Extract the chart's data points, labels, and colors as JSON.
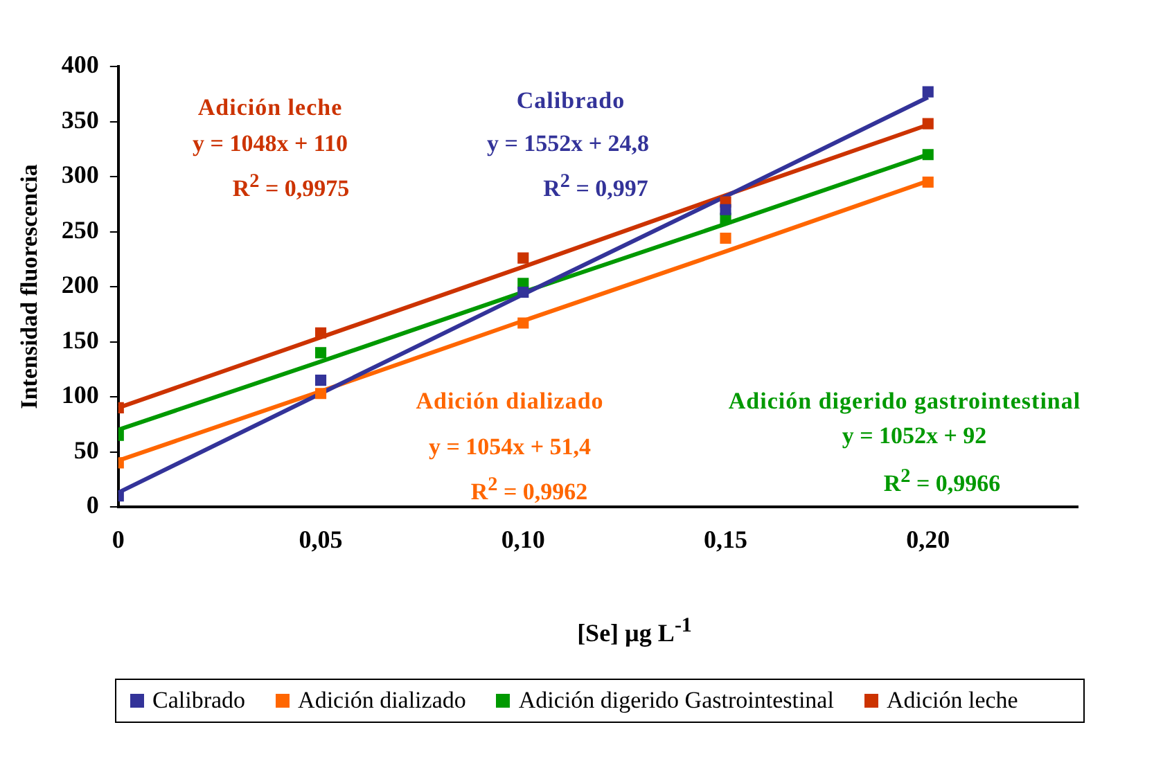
{
  "chart_data": {
    "type": "scatter",
    "xlabel": "[Se] µg L$^{-1}$",
    "ylabel": "Intensidad fluorescencia",
    "x": [
      0,
      0.05,
      0.1,
      0.15,
      0.2
    ],
    "series": [
      {
        "name": "Calibrado",
        "color": "#333399",
        "values": [
          10,
          115,
          195,
          270,
          377
        ]
      },
      {
        "name": "Adición dializado",
        "color": "#ff6600",
        "values": [
          40,
          103,
          167,
          244,
          295
        ]
      },
      {
        "name": "Adición digerido Gastrointestinal",
        "color": "#009900",
        "values": [
          65,
          140,
          203,
          262,
          320
        ]
      },
      {
        "name": "Adición leche",
        "color": "#cc3300",
        "values": [
          90,
          158,
          226,
          277,
          348
        ]
      },
      {
        "type": "line",
        "color": "#333399",
        "marker": "none",
        "values": [
          13,
          103,
          193,
          282,
          372
        ]
      },
      {
        "type": "line",
        "color": "#ff6600",
        "marker": "none",
        "values": [
          42,
          105,
          169,
          232,
          296
        ]
      },
      {
        "type": "line",
        "color": "#009900",
        "marker": "none",
        "values": [
          70,
          132,
          195,
          257,
          320
        ]
      },
      {
        "type": "line",
        "color": "#cc3300",
        "marker": "none",
        "values": [
          90,
          154,
          218,
          283,
          347
        ]
      }
    ],
    "xlim": [
      0,
      0.237
    ],
    "xticks": [
      0,
      {
        "value": 0.05,
        "label": "0,05"
      },
      {
        "value": 0.1,
        "label": "0,10"
      },
      {
        "value": 0.15,
        "label": "0,15"
      },
      {
        "value": 0.2,
        "label": "0,20"
      }
    ],
    "ylim": [
      0,
      400
    ],
    "yticks": [
      0,
      50,
      100,
      150,
      200,
      250,
      300,
      350,
      400
    ],
    "marker": "square",
    "grid": false,
    "legend": "bottom",
    "annotations": [
      "Adición leche",
      "y = 1048x + 110",
      "R$^{2}$ = 0,9975",
      "Calibrado",
      "y = 1552x + 24,8",
      "R$^{2}$ = 0,997",
      "Adición dializado",
      "y = 1054x + 51,4",
      "R$^{2}$ = 0,9962",
      "Adición digerido gastrointestinal",
      "y = 1052x + 92",
      "R$^{2}$ = 0,9966"
    ]
  }
}
